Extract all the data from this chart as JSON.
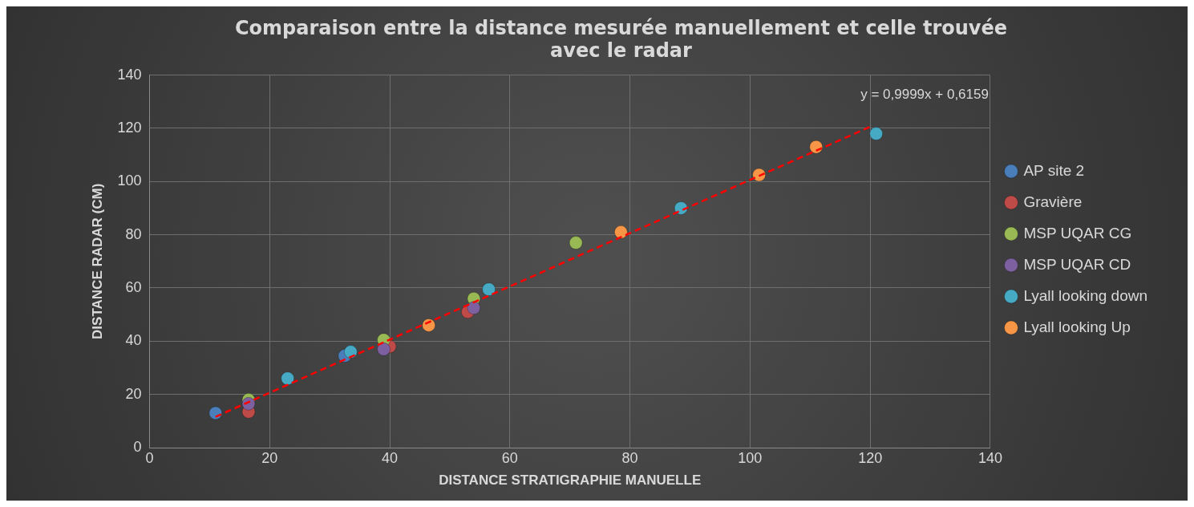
{
  "chart_data": {
    "type": "scatter",
    "title": "Comparaison entre la distance mesurée manuellement et celle trouvée avec le radar",
    "xlabel": "DISTANCE STRATIGRAPHIE MANUELLE",
    "ylabel": "DISTANCE RADAR (CM)",
    "xlim": [
      0,
      140
    ],
    "xticks": [
      0,
      20,
      40,
      60,
      80,
      100,
      120,
      140
    ],
    "ylim": [
      0,
      140
    ],
    "yticks": [
      0,
      20,
      40,
      60,
      80,
      100,
      120,
      140
    ],
    "grid": true,
    "legend": "right",
    "marker": "circle",
    "series": [
      {
        "name": "AP site 2",
        "color": "#4a7ebb",
        "x": [
          11,
          32.5
        ],
        "values": [
          13,
          34.5
        ]
      },
      {
        "name": "Gravière",
        "color": "#be4b48",
        "x": [
          16.5,
          40,
          53
        ],
        "values": [
          13.5,
          38,
          51
        ]
      },
      {
        "name": "MSP UQAR CG",
        "color": "#98b954",
        "x": [
          16.5,
          39,
          54,
          71
        ],
        "values": [
          18,
          40.5,
          56,
          77
        ]
      },
      {
        "name": "MSP UQAR CD",
        "color": "#7d60a0",
        "x": [
          16.5,
          39,
          54
        ],
        "values": [
          16.5,
          37,
          52.5
        ]
      },
      {
        "name": "Lyall looking down",
        "color": "#46aac5",
        "x": [
          23,
          33.5,
          56.5,
          88.5,
          121
        ],
        "values": [
          26,
          36,
          59.5,
          90,
          118
        ]
      },
      {
        "name": "Lyall looking Up",
        "color": "#f79646",
        "x": [
          46.5,
          78.5,
          101.5,
          111
        ],
        "values": [
          46,
          81,
          102.5,
          113
        ]
      },
      {
        "type": "line",
        "color": "#ff0000",
        "line_style": "dashed",
        "marker": "none",
        "x": [
          11,
          120
        ],
        "values": [
          11.6,
          120.6
        ]
      }
    ],
    "annotations": [
      "y = 0,9999x + 0,6159"
    ]
  }
}
